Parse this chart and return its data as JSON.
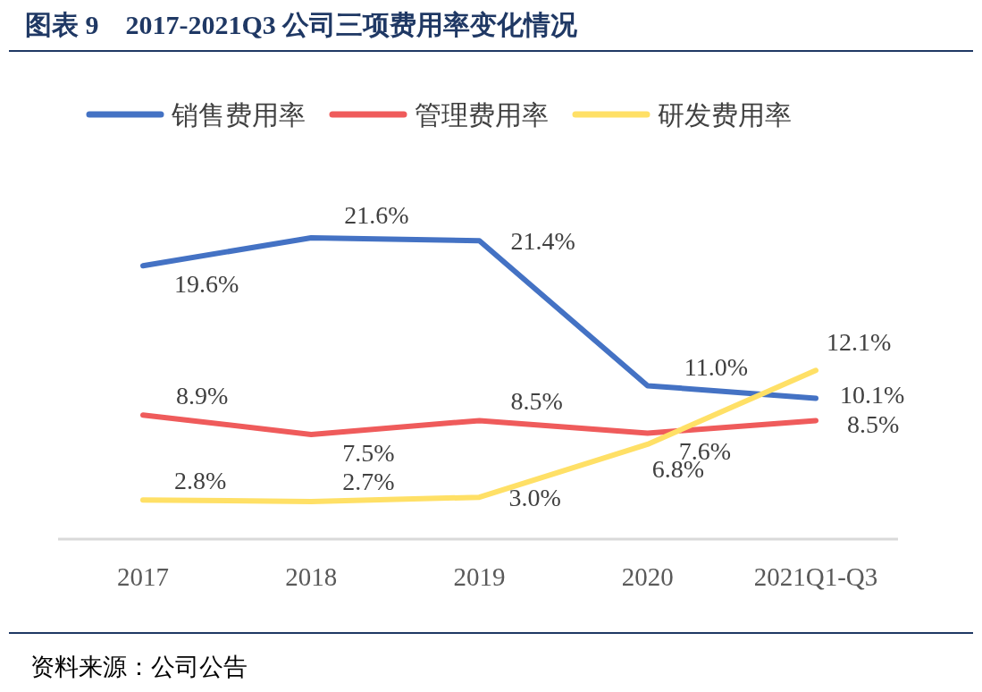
{
  "chart_data": {
    "type": "line",
    "title": "图表 9　2017-2021Q3 公司三项费用率变化情况",
    "categories": [
      "2017",
      "2018",
      "2019",
      "2020",
      "2021Q1-Q3"
    ],
    "series": [
      {
        "name": "销售费用率",
        "color": "#4472c4",
        "values": [
          19.6,
          21.6,
          21.4,
          11.0,
          10.1
        ],
        "value_labels": [
          "19.6%",
          "21.6%",
          "21.4%",
          "11.0%",
          "10.1%"
        ]
      },
      {
        "name": "管理费用率",
        "color": "#ef5b5b",
        "values": [
          8.9,
          7.5,
          8.5,
          7.6,
          8.5
        ],
        "value_labels": [
          "8.9%",
          "7.5%",
          "8.5%",
          "7.6%",
          "8.5%"
        ]
      },
      {
        "name": "研发费用率",
        "color": "#ffe066",
        "values": [
          2.8,
          2.7,
          3.0,
          6.8,
          12.1
        ],
        "value_labels": [
          "2.8%",
          "2.7%",
          "3.0%",
          "6.8%",
          "12.1%"
        ]
      }
    ],
    "legend": "top",
    "marker": "none",
    "line_style": "solid",
    "annotations": [
      "资料来源：公司公告"
    ]
  }
}
